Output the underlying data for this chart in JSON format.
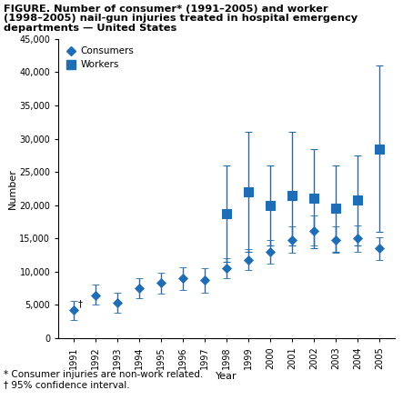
{
  "title_line1": "FIGURE. Number of consumer* (1991–2005) and worker",
  "title_line2": "(1998–2005) nail-gun injuries treated in hospital emergency",
  "title_line3": "departments — United States",
  "xlabel": "Year",
  "ylabel": "Number",
  "footnote1": "* Consumer injuries are non-work related.",
  "footnote2": "† 95% confidence interval.",
  "ylim": [
    0,
    45000
  ],
  "yticks": [
    0,
    5000,
    10000,
    15000,
    20000,
    25000,
    30000,
    35000,
    40000,
    45000
  ],
  "consumer_years": [
    1991,
    1992,
    1993,
    1994,
    1995,
    1996,
    1997,
    1998,
    1999,
    2000,
    2001,
    2002,
    2003,
    2004,
    2005
  ],
  "consumer_values": [
    4200,
    6500,
    5300,
    7500,
    8300,
    9000,
    8700,
    10500,
    11800,
    13000,
    14800,
    16200,
    14800,
    15000,
    13500
  ],
  "consumer_lower": [
    2800,
    5000,
    3800,
    6000,
    6700,
    7200,
    6900,
    9000,
    10200,
    11200,
    12800,
    14000,
    12800,
    13000,
    11800
  ],
  "consumer_upper": [
    5600,
    8100,
    6800,
    9000,
    9900,
    10700,
    10500,
    12100,
    13400,
    14800,
    16800,
    18400,
    16800,
    17000,
    15200
  ],
  "worker_years": [
    1998,
    1999,
    2000,
    2001,
    2002,
    2003,
    2004,
    2005
  ],
  "worker_values": [
    18800,
    22000,
    20000,
    21500,
    21000,
    19500,
    20800,
    28500
  ],
  "worker_lower": [
    11500,
    13000,
    14000,
    14000,
    13500,
    13000,
    14000,
    16000
  ],
  "worker_upper": [
    26000,
    31000,
    26000,
    31000,
    28500,
    26000,
    27500,
    41000
  ],
  "color": "#1f6eb5",
  "bg_color": "#ffffff",
  "marker_consumer": "D",
  "marker_worker": "s",
  "marker_size_consumer": 5,
  "marker_size_worker": 7,
  "error_capsize": 3,
  "error_linewidth": 1.0,
  "title_fontsize": 8.2,
  "axis_fontsize": 8.0,
  "tick_fontsize": 7.0,
  "legend_fontsize": 7.5,
  "footnote_fontsize": 7.5
}
